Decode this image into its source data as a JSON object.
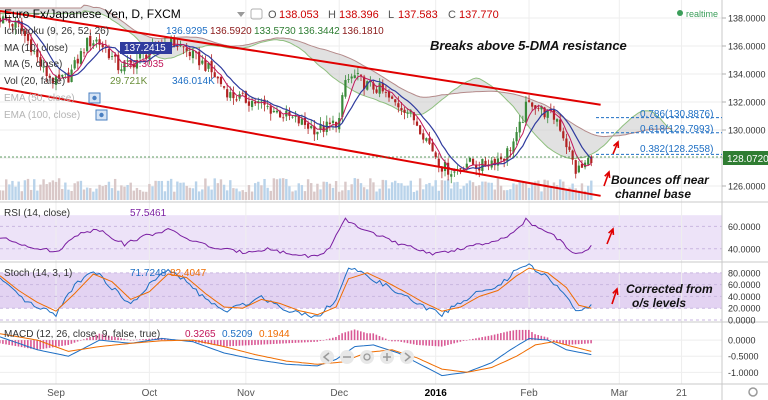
{
  "chart_data": {
    "type": "line",
    "header": {
      "symbol": "Euro Fx/Japanese Yen, D, FXCM",
      "ohlc": [
        {
          "label": "O",
          "value": "138.053"
        },
        {
          "label": "H",
          "value": "138.396"
        },
        {
          "label": "L",
          "value": "137.583"
        },
        {
          "label": "C",
          "value": "137.770"
        }
      ],
      "realtime": "realtime"
    },
    "indicators_main": [
      {
        "label": "Ichimoku (9, 26, 52, 26)",
        "values": [
          "136.9295",
          "136.5920",
          "133.5730",
          "136.3442",
          "136.1810"
        ]
      },
      {
        "label": "MA (10, close)",
        "values": [
          "137.2415"
        ]
      },
      {
        "label": "MA (5, close)",
        "values": [
          "137.3035"
        ]
      },
      {
        "label": "Vol (20, false)",
        "values": [
          "29.721K",
          "346.014K"
        ]
      },
      {
        "label": "EMA (50, close)",
        "values": []
      },
      {
        "label": "EMA (100, close)",
        "values": []
      }
    ],
    "annotations": {
      "breaks": "Breaks above 5-DMA resistance",
      "bounces": [
        "Bounces off near",
        "channel base"
      ],
      "corrected": [
        "Corrected from",
        "o/s levels"
      ]
    },
    "fib_levels": [
      {
        "label": "0.786(130.8876)",
        "price": 130.8876
      },
      {
        "label": "0.618(129.7993)",
        "price": 129.7993
      },
      {
        "label": "0.382(128.2558)",
        "price": 128.2558
      }
    ],
    "last_price": {
      "label": "128.0720",
      "price": 128.072
    },
    "price_axis": {
      "ylim": [
        125,
        139
      ],
      "ticks": [
        "126.0000",
        "128.0000",
        "130.0000",
        "132.0000",
        "134.0000",
        "136.0000",
        "138.0000"
      ]
    },
    "x_axis": {
      "ticks": [
        {
          "label": "Sep",
          "i": 18
        },
        {
          "label": "Oct",
          "i": 48
        },
        {
          "label": "Nov",
          "i": 79
        },
        {
          "label": "Dec",
          "i": 109
        },
        {
          "label": "2016",
          "i": 140
        },
        {
          "label": "Feb",
          "i": 170
        },
        {
          "label": "Mar",
          "i": 199
        },
        {
          "label": "21",
          "i": 219
        }
      ],
      "n": 232
    },
    "close_series": [
      {
        "i": 0,
        "v": 138.0
      },
      {
        "i": 6,
        "v": 137.4
      },
      {
        "i": 10,
        "v": 136.0
      },
      {
        "i": 14,
        "v": 134.2
      },
      {
        "i": 18,
        "v": 133.4
      },
      {
        "i": 22,
        "v": 133.8
      },
      {
        "i": 25,
        "v": 135.0
      },
      {
        "i": 28,
        "v": 136.2
      },
      {
        "i": 31,
        "v": 136.4
      },
      {
        "i": 34,
        "v": 135.8
      },
      {
        "i": 38,
        "v": 134.5
      },
      {
        "i": 42,
        "v": 134.7
      },
      {
        "i": 46,
        "v": 135.3
      },
      {
        "i": 50,
        "v": 135.9
      },
      {
        "i": 54,
        "v": 136.3
      },
      {
        "i": 58,
        "v": 136.0
      },
      {
        "i": 62,
        "v": 135.3
      },
      {
        "i": 66,
        "v": 134.6
      },
      {
        "i": 70,
        "v": 133.6
      },
      {
        "i": 74,
        "v": 132.5
      },
      {
        "i": 78,
        "v": 132.2
      },
      {
        "i": 82,
        "v": 132.0
      },
      {
        "i": 86,
        "v": 131.6
      },
      {
        "i": 90,
        "v": 131.2
      },
      {
        "i": 94,
        "v": 130.8
      },
      {
        "i": 98,
        "v": 130.4
      },
      {
        "i": 102,
        "v": 130.0
      },
      {
        "i": 106,
        "v": 130.3
      },
      {
        "i": 109,
        "v": 130.7
      },
      {
        "i": 111,
        "v": 133.5
      },
      {
        "i": 114,
        "v": 133.8
      },
      {
        "i": 118,
        "v": 133.2
      },
      {
        "i": 122,
        "v": 132.9
      },
      {
        "i": 126,
        "v": 132.0
      },
      {
        "i": 130,
        "v": 131.6
      },
      {
        "i": 134,
        "v": 130.5
      },
      {
        "i": 138,
        "v": 129.0
      },
      {
        "i": 142,
        "v": 127.4
      },
      {
        "i": 146,
        "v": 127.0
      },
      {
        "i": 150,
        "v": 127.7
      },
      {
        "i": 154,
        "v": 127.4
      },
      {
        "i": 158,
        "v": 127.8
      },
      {
        "i": 162,
        "v": 128.1
      },
      {
        "i": 166,
        "v": 129.5
      },
      {
        "i": 169,
        "v": 131.6
      },
      {
        "i": 171,
        "v": 132.0
      },
      {
        "i": 173,
        "v": 131.6
      },
      {
        "i": 176,
        "v": 131.1
      },
      {
        "i": 179,
        "v": 130.8
      },
      {
        "i": 182,
        "v": 129.0
      },
      {
        "i": 185,
        "v": 127.1
      },
      {
        "i": 187,
        "v": 127.3
      },
      {
        "i": 190,
        "v": 128.07
      }
    ],
    "channel": {
      "upper": [
        {
          "i": 0,
          "v": 138.5
        },
        {
          "i": 193,
          "v": 131.8
        }
      ],
      "lower": [
        {
          "i": 0,
          "v": 133.0
        },
        {
          "i": 193,
          "v": 125.3
        }
      ]
    },
    "rsi": {
      "label": "RSI (14, close)",
      "value": "57.5461",
      "ylim": [
        30,
        80
      ],
      "ticks": [
        "40.0000",
        "60.0000"
      ],
      "band": [
        30,
        70
      ],
      "series": [
        {
          "i": 0,
          "v": 50
        },
        {
          "i": 10,
          "v": 42
        },
        {
          "i": 18,
          "v": 37
        },
        {
          "i": 26,
          "v": 55
        },
        {
          "i": 32,
          "v": 57
        },
        {
          "i": 40,
          "v": 44
        },
        {
          "i": 46,
          "v": 51
        },
        {
          "i": 54,
          "v": 57
        },
        {
          "i": 62,
          "v": 47
        },
        {
          "i": 70,
          "v": 40
        },
        {
          "i": 78,
          "v": 37
        },
        {
          "i": 86,
          "v": 40
        },
        {
          "i": 94,
          "v": 35
        },
        {
          "i": 102,
          "v": 33
        },
        {
          "i": 106,
          "v": 41
        },
        {
          "i": 111,
          "v": 66
        },
        {
          "i": 116,
          "v": 58
        },
        {
          "i": 122,
          "v": 52
        },
        {
          "i": 128,
          "v": 44
        },
        {
          "i": 134,
          "v": 40
        },
        {
          "i": 140,
          "v": 35
        },
        {
          "i": 146,
          "v": 39
        },
        {
          "i": 152,
          "v": 43
        },
        {
          "i": 158,
          "v": 45
        },
        {
          "i": 164,
          "v": 52
        },
        {
          "i": 169,
          "v": 66
        },
        {
          "i": 173,
          "v": 58
        },
        {
          "i": 178,
          "v": 52
        },
        {
          "i": 184,
          "v": 37
        },
        {
          "i": 187,
          "v": 35
        },
        {
          "i": 190,
          "v": 42
        }
      ]
    },
    "stoch": {
      "label": "Stoch (14, 3, 1)",
      "values": [
        "71.7248",
        "82.4047"
      ],
      "ylim": [
        0,
        95
      ],
      "ticks": [
        "0.0000",
        "20.0000",
        "40.0000",
        "60.0000",
        "80.0000"
      ],
      "band": [
        20,
        80
      ],
      "k": [
        {
          "i": 0,
          "v": 70
        },
        {
          "i": 6,
          "v": 40
        },
        {
          "i": 12,
          "v": 20
        },
        {
          "i": 18,
          "v": 10
        },
        {
          "i": 24,
          "v": 60
        },
        {
          "i": 30,
          "v": 85
        },
        {
          "i": 36,
          "v": 55
        },
        {
          "i": 42,
          "v": 25
        },
        {
          "i": 48,
          "v": 60
        },
        {
          "i": 54,
          "v": 85
        },
        {
          "i": 60,
          "v": 65
        },
        {
          "i": 66,
          "v": 35
        },
        {
          "i": 72,
          "v": 15
        },
        {
          "i": 78,
          "v": 25
        },
        {
          "i": 84,
          "v": 40
        },
        {
          "i": 90,
          "v": 22
        },
        {
          "i": 96,
          "v": 12
        },
        {
          "i": 102,
          "v": 6
        },
        {
          "i": 108,
          "v": 35
        },
        {
          "i": 112,
          "v": 88
        },
        {
          "i": 118,
          "v": 75
        },
        {
          "i": 124,
          "v": 58
        },
        {
          "i": 130,
          "v": 40
        },
        {
          "i": 136,
          "v": 22
        },
        {
          "i": 142,
          "v": 10
        },
        {
          "i": 148,
          "v": 30
        },
        {
          "i": 154,
          "v": 48
        },
        {
          "i": 160,
          "v": 55
        },
        {
          "i": 166,
          "v": 85
        },
        {
          "i": 170,
          "v": 92
        },
        {
          "i": 176,
          "v": 72
        },
        {
          "i": 182,
          "v": 42
        },
        {
          "i": 186,
          "v": 12
        },
        {
          "i": 190,
          "v": 28
        }
      ],
      "d": [
        {
          "i": 0,
          "v": 75
        },
        {
          "i": 6,
          "v": 50
        },
        {
          "i": 12,
          "v": 30
        },
        {
          "i": 18,
          "v": 15
        },
        {
          "i": 24,
          "v": 45
        },
        {
          "i": 30,
          "v": 78
        },
        {
          "i": 36,
          "v": 65
        },
        {
          "i": 42,
          "v": 35
        },
        {
          "i": 48,
          "v": 48
        },
        {
          "i": 54,
          "v": 78
        },
        {
          "i": 60,
          "v": 72
        },
        {
          "i": 66,
          "v": 45
        },
        {
          "i": 72,
          "v": 22
        },
        {
          "i": 78,
          "v": 20
        },
        {
          "i": 84,
          "v": 35
        },
        {
          "i": 90,
          "v": 28
        },
        {
          "i": 96,
          "v": 16
        },
        {
          "i": 102,
          "v": 9
        },
        {
          "i": 108,
          "v": 22
        },
        {
          "i": 112,
          "v": 70
        },
        {
          "i": 118,
          "v": 80
        },
        {
          "i": 124,
          "v": 65
        },
        {
          "i": 130,
          "v": 48
        },
        {
          "i": 136,
          "v": 30
        },
        {
          "i": 142,
          "v": 15
        },
        {
          "i": 148,
          "v": 22
        },
        {
          "i": 154,
          "v": 40
        },
        {
          "i": 160,
          "v": 50
        },
        {
          "i": 166,
          "v": 75
        },
        {
          "i": 170,
          "v": 88
        },
        {
          "i": 176,
          "v": 80
        },
        {
          "i": 182,
          "v": 55
        },
        {
          "i": 186,
          "v": 25
        },
        {
          "i": 190,
          "v": 20
        }
      ]
    },
    "macd": {
      "label": "MACD (12, 26, close, 9, false, true)",
      "values": [
        "0.3265",
        "0.5209",
        "0.1944"
      ],
      "ylim": [
        -1.3,
        0.5
      ],
      "ticks": [
        "-1.0000",
        "-0.5000",
        "0.0000"
      ],
      "macd_line": [
        {
          "i": 0,
          "v": 0.1
        },
        {
          "i": 12,
          "v": -0.3
        },
        {
          "i": 22,
          "v": -0.5
        },
        {
          "i": 32,
          "v": 0.0
        },
        {
          "i": 42,
          "v": -0.1
        },
        {
          "i": 52,
          "v": 0.05
        },
        {
          "i": 62,
          "v": -0.05
        },
        {
          "i": 72,
          "v": -0.4
        },
        {
          "i": 82,
          "v": -0.6
        },
        {
          "i": 92,
          "v": -0.75
        },
        {
          "i": 102,
          "v": -0.8
        },
        {
          "i": 108,
          "v": -0.6
        },
        {
          "i": 114,
          "v": -0.2
        },
        {
          "i": 120,
          "v": -0.15
        },
        {
          "i": 128,
          "v": -0.4
        },
        {
          "i": 136,
          "v": -0.8
        },
        {
          "i": 142,
          "v": -1.1
        },
        {
          "i": 150,
          "v": -1.0
        },
        {
          "i": 158,
          "v": -0.7
        },
        {
          "i": 164,
          "v": -0.3
        },
        {
          "i": 170,
          "v": 0.05
        },
        {
          "i": 176,
          "v": 0.0
        },
        {
          "i": 182,
          "v": -0.3
        },
        {
          "i": 190,
          "v": -0.45
        }
      ],
      "signal_line": [
        {
          "i": 0,
          "v": 0.2
        },
        {
          "i": 12,
          "v": 0.0
        },
        {
          "i": 22,
          "v": -0.35
        },
        {
          "i": 32,
          "v": -0.2
        },
        {
          "i": 42,
          "v": -0.1
        },
        {
          "i": 52,
          "v": -0.02
        },
        {
          "i": 62,
          "v": 0.0
        },
        {
          "i": 72,
          "v": -0.2
        },
        {
          "i": 82,
          "v": -0.45
        },
        {
          "i": 92,
          "v": -0.65
        },
        {
          "i": 102,
          "v": -0.75
        },
        {
          "i": 110,
          "v": -0.68
        },
        {
          "i": 118,
          "v": -0.38
        },
        {
          "i": 126,
          "v": -0.3
        },
        {
          "i": 134,
          "v": -0.55
        },
        {
          "i": 142,
          "v": -0.9
        },
        {
          "i": 150,
          "v": -1.0
        },
        {
          "i": 158,
          "v": -0.85
        },
        {
          "i": 166,
          "v": -0.5
        },
        {
          "i": 172,
          "v": -0.15
        },
        {
          "i": 178,
          "v": -0.05
        },
        {
          "i": 184,
          "v": -0.2
        },
        {
          "i": 190,
          "v": -0.35
        }
      ]
    }
  }
}
